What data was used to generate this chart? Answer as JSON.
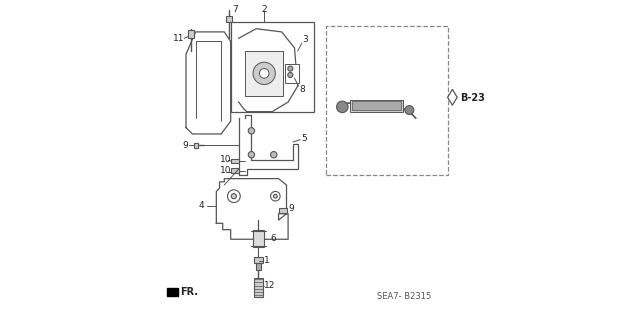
{
  "bg_color": "#ffffff",
  "line_color": "#555555",
  "text_color": "#222222",
  "title_code": "SEA7- B2315",
  "ref_label": "B-23",
  "arrow_label": "FR.",
  "figsize": [
    6.4,
    3.19
  ],
  "dpi": 100
}
